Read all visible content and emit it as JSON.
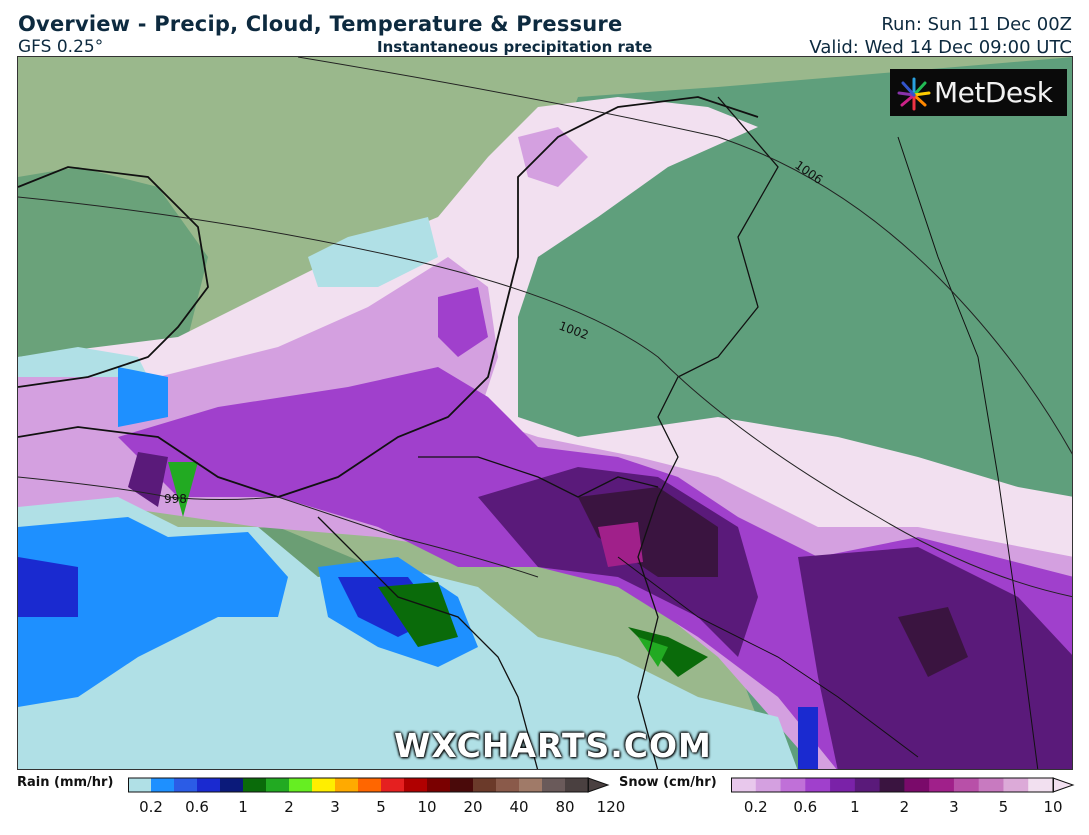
{
  "header": {
    "title": "Overview - Precip, Cloud, Temperature & Pressure",
    "model": "GFS 0.25°",
    "subtitle": "Instantaneous precipitation rate",
    "run": "Run: Sun 11 Dec 00Z",
    "valid": "Valid: Wed 14 Dec 09:00 UTC"
  },
  "brand": {
    "logo_text": "MetDesk",
    "watermark": "WXCHARTS.COM"
  },
  "isobars": [
    "1006",
    "1002",
    "998"
  ],
  "legend": {
    "rain": {
      "label": "Rain (mm/hr)",
      "ticks": [
        "0.2",
        "0.6",
        "1",
        "2",
        "3",
        "5",
        "10",
        "20",
        "40",
        "80",
        "120"
      ],
      "colors": [
        "#b0e0e6",
        "#1e90ff",
        "#2b5ce6",
        "#1a2ad0",
        "#0b1a7a",
        "#0a6b0a",
        "#22aa22",
        "#66ee22",
        "#ffee00",
        "#ffaa00",
        "#ff6600",
        "#e52020",
        "#b00000",
        "#7a0000",
        "#4a0a0a",
        "#6b3a2a",
        "#8a5a4a",
        "#a07a68",
        "#6a5a5a",
        "#4a4040"
      ]
    },
    "snow": {
      "label": "Snow (cm/hr)",
      "ticks": [
        "0.2",
        "0.6",
        "1",
        "2",
        "3",
        "5",
        "10"
      ],
      "colors": [
        "#e8c8ec",
        "#d4a0e0",
        "#c070d8",
        "#a040cc",
        "#7a22a8",
        "#5a1a7a",
        "#3a1440",
        "#7a0a6a",
        "#a0208a",
        "#b850a8",
        "#c87ac0",
        "#dcaad8",
        "#f2e0f0"
      ]
    }
  },
  "colors": {
    "land": "#5e9e78",
    "sea": "#9ab88c",
    "rain_light": "#b0e0e6",
    "rain_med": "#1e90ff",
    "snow_light": "#f2e0f0",
    "snow_heavy": "#3a1440"
  }
}
